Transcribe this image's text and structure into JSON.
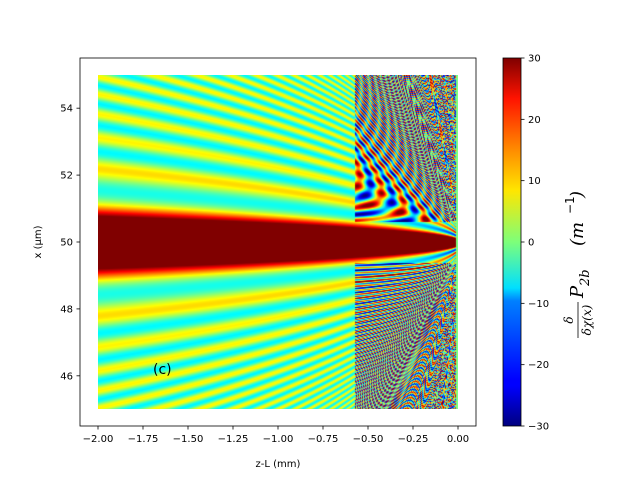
{
  "chart_data": {
    "type": "heatmap",
    "title": "",
    "xlabel": "z-L (mm)",
    "ylabel": "x (μm)",
    "xlim": [
      -2.1,
      0.1
    ],
    "ylim": [
      44.5,
      55.5
    ],
    "data_extent": {
      "x": [
        -2.0,
        0.0
      ],
      "y": [
        45.0,
        55.0
      ]
    },
    "x_ticks": [
      {
        "value": -2.0,
        "label": "−2.00"
      },
      {
        "value": -1.75,
        "label": "−1.75"
      },
      {
        "value": -1.5,
        "label": "−1.50"
      },
      {
        "value": -1.25,
        "label": "−1.25"
      },
      {
        "value": -1.0,
        "label": "−1.00"
      },
      {
        "value": -0.75,
        "label": "−0.75"
      },
      {
        "value": -0.5,
        "label": "−0.50"
      },
      {
        "value": -0.25,
        "label": "−0.25"
      },
      {
        "value": 0.0,
        "label": "0.00"
      }
    ],
    "y_ticks": [
      {
        "value": 46,
        "label": "46"
      },
      {
        "value": 48,
        "label": "48"
      },
      {
        "value": 50,
        "label": "50"
      },
      {
        "value": 52,
        "label": "52"
      },
      {
        "value": 54,
        "label": "54"
      }
    ],
    "annotation": {
      "text": "(c)",
      "x": -1.65,
      "y": 46.2
    },
    "colorbar": {
      "colormap": "jet",
      "range": [
        -30,
        30
      ],
      "ticks": [
        {
          "value": 30,
          "label": "30"
        },
        {
          "value": 20,
          "label": "20"
        },
        {
          "value": 10,
          "label": "10"
        },
        {
          "value": 0,
          "label": "0"
        },
        {
          "value": -10,
          "label": "−10"
        },
        {
          "value": -20,
          "label": "−20"
        },
        {
          "value": -30,
          "label": "−30"
        }
      ],
      "label_parts": {
        "num": "δ",
        "den": "δχ(x)",
        "symbol": "P",
        "sub": "2b",
        "unit_base": "(m",
        "unit_exp": "−1",
        "unit_close": ")"
      }
    }
  }
}
